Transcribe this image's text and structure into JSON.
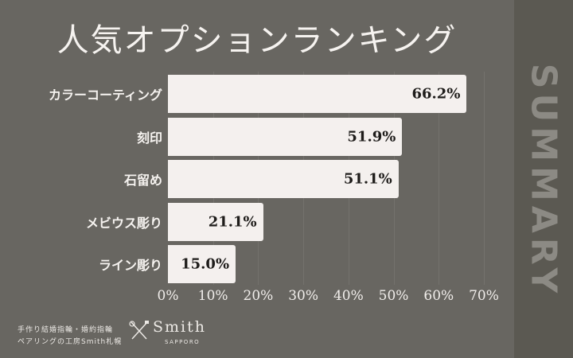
{
  "title": "人気オプションランキング",
  "side_label": "SUMMARY",
  "footer": {
    "line1": "手作り結婚指輪・婚約指輪",
    "line2": "ペアリングの工房Smith札幌",
    "logo_name": "Smith",
    "logo_sub": "SAPPORO"
  },
  "chart_data": {
    "type": "bar",
    "orientation": "horizontal",
    "title": "人気オプションランキング",
    "categories": [
      "カラーコーティング",
      "刻印",
      "石留め",
      "メビウス彫り",
      "ライン彫り"
    ],
    "values": [
      66.2,
      51.9,
      51.1,
      21.1,
      15.0
    ],
    "value_labels": [
      "66.2%",
      "51.9%",
      "51.1%",
      "21.1%",
      "15.0%"
    ],
    "xlabel": "",
    "ylabel": "",
    "xlim": [
      0,
      70
    ],
    "x_ticks": [
      "0%",
      "10%",
      "20%",
      "30%",
      "40%",
      "50%",
      "60%",
      "70%"
    ],
    "grid": true,
    "legend": "none",
    "colors": {
      "bar": "#f4f0ee",
      "background": "#686661",
      "side_panel": "#5b5952"
    }
  }
}
